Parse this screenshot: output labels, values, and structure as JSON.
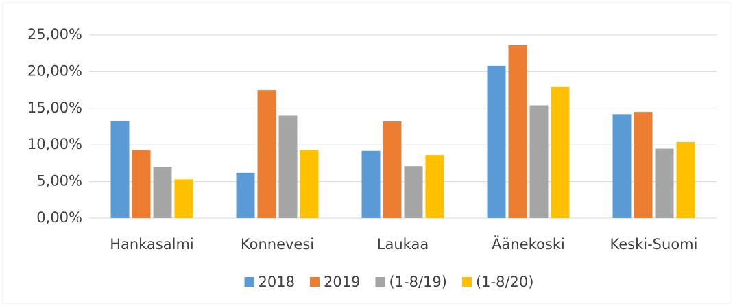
{
  "chart_data": {
    "type": "bar",
    "categories": [
      "Hankasalmi",
      "Konnevesi",
      "Laukaa",
      "Äänekoski",
      "Keski-Suomi"
    ],
    "series": [
      {
        "name": "2018",
        "color": "#5b9bd5",
        "values": [
          13.3,
          6.2,
          9.2,
          20.8,
          14.2
        ]
      },
      {
        "name": "2019",
        "color": "#ed7d31",
        "values": [
          9.3,
          17.5,
          13.2,
          23.6,
          14.5
        ]
      },
      {
        "name": "(1-8/19)",
        "color": "#a5a5a5",
        "values": [
          7.0,
          14.0,
          7.1,
          15.4,
          9.5
        ]
      },
      {
        "name": "(1-8/20)",
        "color": "#ffc000",
        "values": [
          5.3,
          9.3,
          8.6,
          17.9,
          10.4
        ]
      }
    ],
    "ylim": [
      0,
      25
    ],
    "yticks": [
      {
        "value": 0,
        "label": "0,00%"
      },
      {
        "value": 5,
        "label": "5,00%"
      },
      {
        "value": 10,
        "label": "10,00%"
      },
      {
        "value": 15,
        "label": "15,00%"
      },
      {
        "value": 20,
        "label": "20,00%"
      },
      {
        "value": 25,
        "label": "25,00%"
      }
    ],
    "grid": true,
    "legend": "bottom"
  }
}
